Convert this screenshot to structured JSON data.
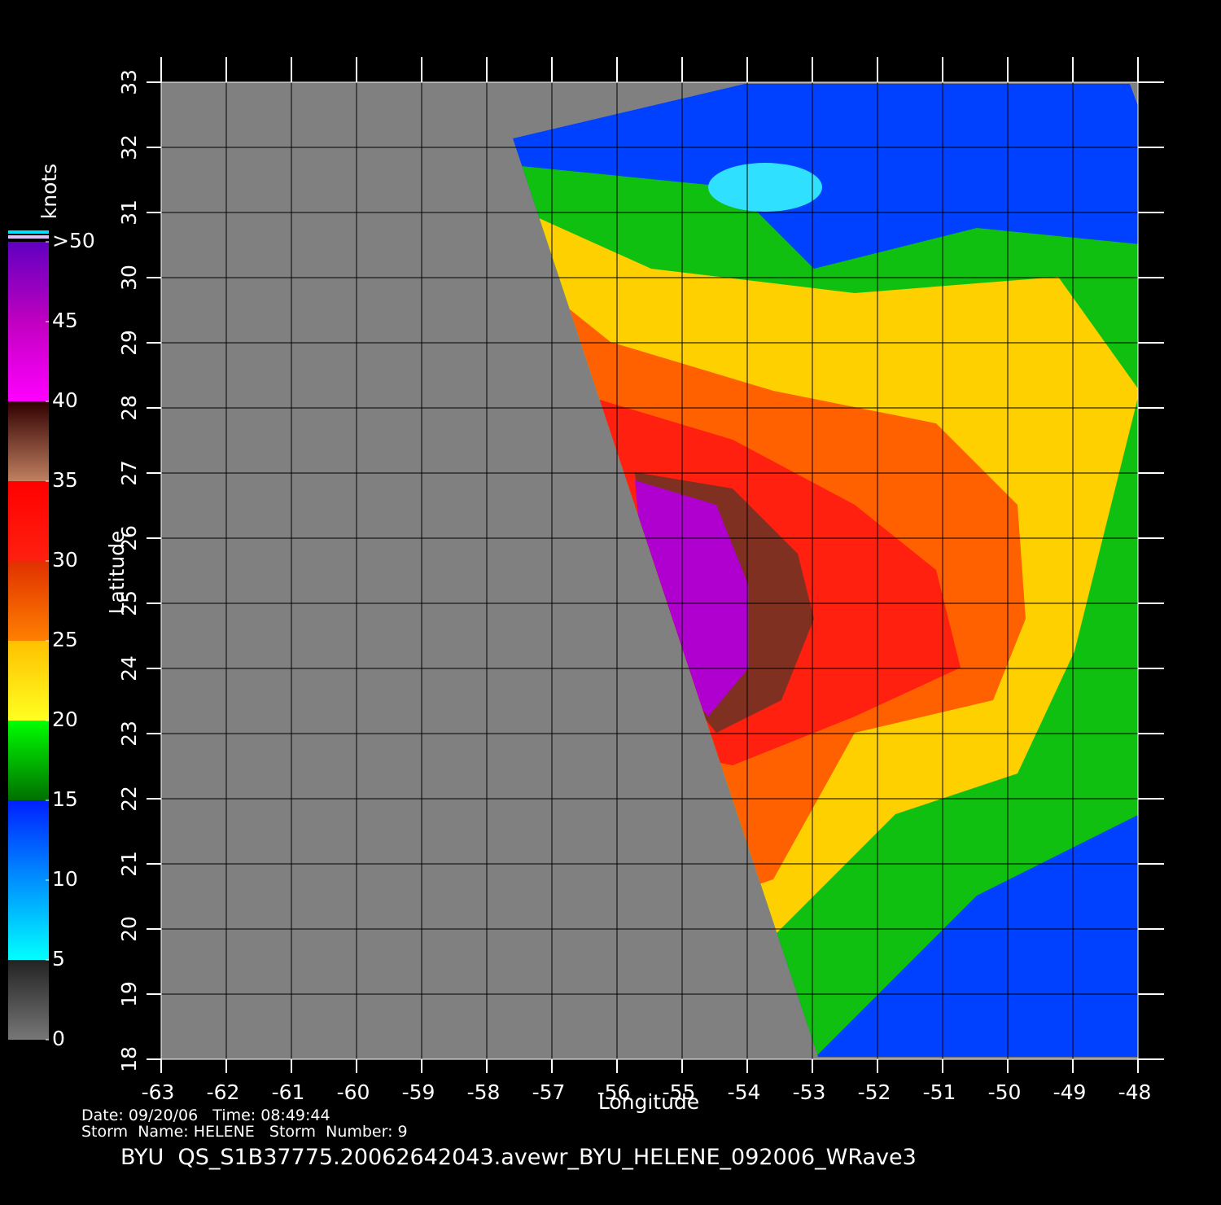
{
  "map": {
    "xticks": [
      -63,
      -62,
      -61,
      -60,
      -59,
      -58,
      -57,
      -56,
      -55,
      -54,
      -53,
      -52,
      -51,
      -50,
      -49,
      -48
    ],
    "yticks": [
      18,
      19,
      20,
      21,
      22,
      23,
      24,
      25,
      26,
      27,
      28,
      29,
      30,
      31,
      32,
      33
    ],
    "xlim": [
      -63,
      -48
    ],
    "ylim": [
      18,
      33
    ],
    "xlabel": "Longitude",
    "ylabel": "Latitude",
    "colorbar": {
      "title": "knots",
      "lim": [
        0,
        50
      ],
      "ticks": [
        0,
        5,
        10,
        15,
        20,
        25,
        30,
        35,
        40,
        45,
        {
          "value": 50,
          "label": ">50"
        }
      ]
    },
    "date_line": "Date: 09/20/06   Time: 08:49:44",
    "storm_line": "Storm  Name: HELENE   Storm  Number: 9",
    "title": "BYU  QS_S1B37775.20062642043.avewr_BYU_HELENE_092006_WRave3"
  }
}
